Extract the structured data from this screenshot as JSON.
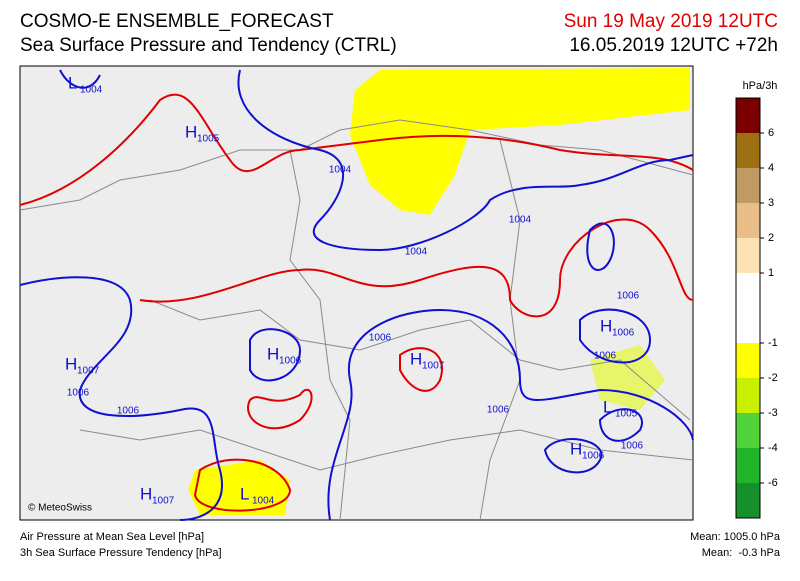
{
  "header": {
    "title": "COSMO-E ENSEMBLE_FORECAST",
    "subtitle": "Sea Surface Pressure and Tendency (CTRL)",
    "valid_time": "Sun 19 May 2019 12UTC",
    "run": "16.05.2019 12UTC +72h"
  },
  "map": {
    "credit": "© MeteoSwiss",
    "centers": [
      {
        "letter": "L",
        "value": "1004"
      },
      {
        "letter": "H",
        "value": "1005"
      },
      {
        "letter": "H",
        "value": "1006"
      },
      {
        "letter": "H",
        "value": "1007"
      },
      {
        "letter": "H",
        "value": "1007"
      },
      {
        "letter": "H",
        "value": "1006"
      },
      {
        "letter": "L",
        "value": "1005"
      },
      {
        "letter": "H",
        "value": "1006"
      },
      {
        "letter": "H",
        "value": "1007"
      },
      {
        "letter": "L",
        "value": "1004"
      }
    ],
    "isobar_labels": [
      "1004",
      "1004",
      "1004",
      "1006",
      "1006",
      "1006",
      "1006",
      "1006",
      "1006",
      "1006"
    ]
  },
  "colorbar": {
    "unit": "hPa/3h",
    "colors": [
      "#7a0000",
      "#9c7012",
      "#bf9a62",
      "#e9bd87",
      "#fde2b6",
      "#ffffff",
      "#ffffff",
      "#ffff00",
      "#c9f000",
      "#4fd23a",
      "#22b52a",
      "#15902a"
    ],
    "ticks": [
      "6",
      "4",
      "3",
      "2",
      "1",
      "-1",
      "-2",
      "-3",
      "-4",
      "-6"
    ]
  },
  "footer": {
    "line1": "Air Pressure at Mean Sea Level [hPa]",
    "line2": "3h Sea Surface Pressure Tendency [hPa]",
    "mean1": "Mean: 1005.0 hPa",
    "mean2": "Mean:  -0.3 hPa"
  }
}
